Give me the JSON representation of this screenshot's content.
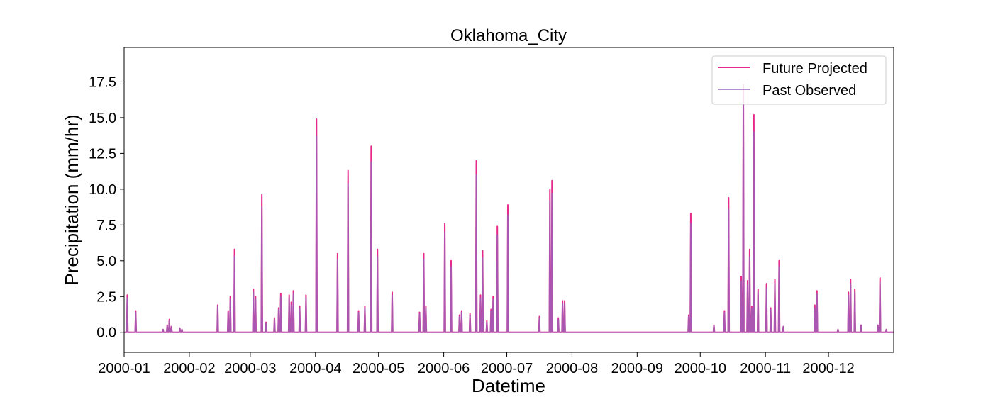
{
  "chart_data": {
    "type": "line",
    "title": "Oklahoma_City",
    "xlabel": "Datetime",
    "ylabel": "Precipitation (mm/hr)",
    "xlim": [
      "2000-01-01",
      "2000-12-31"
    ],
    "ylim": [
      -1.4,
      19.9
    ],
    "x_ticks": [
      "2000-01",
      "2000-02",
      "2000-03",
      "2000-04",
      "2000-05",
      "2000-06",
      "2000-07",
      "2000-08",
      "2000-09",
      "2000-10",
      "2000-11",
      "2000-12"
    ],
    "y_ticks": [
      "0.0",
      "2.5",
      "5.0",
      "7.5",
      "10.0",
      "12.5",
      "15.0",
      "17.5"
    ],
    "y_tick_values": [
      0,
      2.5,
      5,
      7.5,
      10,
      12.5,
      15,
      17.5
    ],
    "grid": false,
    "legend_position": "top-right",
    "series": [
      {
        "name": "Future Projected",
        "color": "#e7298a",
        "points": [
          [
            "2000-01-02",
            2.6
          ],
          [
            "2000-01-06",
            1.5
          ],
          [
            "2000-01-19",
            0.2
          ],
          [
            "2000-01-21",
            0.5
          ],
          [
            "2000-01-22",
            0.9
          ],
          [
            "2000-01-23",
            0.4
          ],
          [
            "2000-01-27",
            0.3
          ],
          [
            "2000-01-28",
            0.2
          ],
          [
            "2000-02-14",
            1.9
          ],
          [
            "2000-02-19",
            1.5
          ],
          [
            "2000-02-20",
            2.5
          ],
          [
            "2000-02-22",
            5.8
          ],
          [
            "2000-03-02",
            3.0
          ],
          [
            "2000-03-03",
            2.5
          ],
          [
            "2000-03-06",
            9.6
          ],
          [
            "2000-03-08",
            0.7
          ],
          [
            "2000-03-12",
            1.0
          ],
          [
            "2000-03-14",
            1.7
          ],
          [
            "2000-03-15",
            2.7
          ],
          [
            "2000-03-19",
            2.6
          ],
          [
            "2000-03-20",
            2.1
          ],
          [
            "2000-03-21",
            2.9
          ],
          [
            "2000-03-24",
            1.8
          ],
          [
            "2000-03-27",
            2.6
          ],
          [
            "2000-04-01",
            14.9
          ],
          [
            "2000-04-11",
            5.5
          ],
          [
            "2000-04-16",
            11.3
          ],
          [
            "2000-04-21",
            1.5
          ],
          [
            "2000-04-24",
            1.8
          ],
          [
            "2000-04-27",
            13.0
          ],
          [
            "2000-04-30",
            5.8
          ],
          [
            "2000-05-07",
            2.8
          ],
          [
            "2000-05-20",
            1.4
          ],
          [
            "2000-05-22",
            5.5
          ],
          [
            "2000-05-23",
            1.8
          ],
          [
            "2000-06-01",
            7.6
          ],
          [
            "2000-06-04",
            5.0
          ],
          [
            "2000-06-08",
            1.2
          ],
          [
            "2000-06-09",
            1.5
          ],
          [
            "2000-06-13",
            1.3
          ],
          [
            "2000-06-16",
            12.0
          ],
          [
            "2000-06-18",
            2.6
          ],
          [
            "2000-06-19",
            5.7
          ],
          [
            "2000-06-21",
            0.8
          ],
          [
            "2000-06-23",
            1.6
          ],
          [
            "2000-06-24",
            2.5
          ],
          [
            "2000-06-26",
            7.4
          ],
          [
            "2000-07-01",
            8.9
          ],
          [
            "2000-07-16",
            1.1
          ],
          [
            "2000-07-21",
            10.0
          ],
          [
            "2000-07-22",
            10.6
          ],
          [
            "2000-07-25",
            1.0
          ],
          [
            "2000-07-27",
            2.2
          ],
          [
            "2000-07-28",
            2.2
          ],
          [
            "2000-09-25",
            1.2
          ],
          [
            "2000-09-26",
            8.3
          ],
          [
            "2000-10-07",
            0.5
          ],
          [
            "2000-10-12",
            1.5
          ],
          [
            "2000-10-14",
            9.4
          ],
          [
            "2000-10-20",
            3.9
          ],
          [
            "2000-10-21",
            17.3
          ],
          [
            "2000-10-23",
            3.6
          ],
          [
            "2000-10-24",
            5.8
          ],
          [
            "2000-10-25",
            1.8
          ],
          [
            "2000-10-26",
            15.2
          ],
          [
            "2000-10-28",
            3.0
          ],
          [
            "2000-11-01",
            3.4
          ],
          [
            "2000-11-03",
            1.7
          ],
          [
            "2000-11-05",
            3.7
          ],
          [
            "2000-11-07",
            5.0
          ],
          [
            "2000-11-09",
            0.4
          ],
          [
            "2000-11-24",
            1.9
          ],
          [
            "2000-11-25",
            2.9
          ],
          [
            "2000-12-05",
            0.2
          ],
          [
            "2000-12-10",
            2.8
          ],
          [
            "2000-12-11",
            3.7
          ],
          [
            "2000-12-13",
            3.0
          ],
          [
            "2000-12-16",
            0.5
          ],
          [
            "2000-12-24",
            0.5
          ],
          [
            "2000-12-25",
            3.8
          ],
          [
            "2000-12-28",
            0.2
          ]
        ]
      },
      {
        "name": "Past Observed",
        "color": "#9467bd",
        "points": [
          [
            "2000-01-02",
            2.4
          ],
          [
            "2000-01-06",
            1.4
          ],
          [
            "2000-01-19",
            0.2
          ],
          [
            "2000-01-21",
            0.5
          ],
          [
            "2000-01-22",
            0.8
          ],
          [
            "2000-01-23",
            0.4
          ],
          [
            "2000-01-27",
            0.3
          ],
          [
            "2000-01-28",
            0.2
          ],
          [
            "2000-02-14",
            1.8
          ],
          [
            "2000-02-19",
            1.4
          ],
          [
            "2000-02-20",
            2.3
          ],
          [
            "2000-02-22",
            5.3
          ],
          [
            "2000-03-02",
            2.8
          ],
          [
            "2000-03-03",
            2.3
          ],
          [
            "2000-03-06",
            8.8
          ],
          [
            "2000-03-08",
            0.6
          ],
          [
            "2000-03-12",
            0.9
          ],
          [
            "2000-03-14",
            1.6
          ],
          [
            "2000-03-15",
            2.5
          ],
          [
            "2000-03-19",
            2.4
          ],
          [
            "2000-03-20",
            1.9
          ],
          [
            "2000-03-21",
            2.7
          ],
          [
            "2000-03-24",
            1.7
          ],
          [
            "2000-03-27",
            2.4
          ],
          [
            "2000-04-01",
            13.7
          ],
          [
            "2000-04-11",
            5.1
          ],
          [
            "2000-04-16",
            10.4
          ],
          [
            "2000-04-21",
            1.4
          ],
          [
            "2000-04-24",
            1.7
          ],
          [
            "2000-04-27",
            11.9
          ],
          [
            "2000-04-30",
            5.3
          ],
          [
            "2000-05-07",
            2.6
          ],
          [
            "2000-05-20",
            1.3
          ],
          [
            "2000-05-22",
            5.1
          ],
          [
            "2000-05-23",
            1.7
          ],
          [
            "2000-06-01",
            7.0
          ],
          [
            "2000-06-04",
            4.6
          ],
          [
            "2000-06-08",
            1.1
          ],
          [
            "2000-06-09",
            1.4
          ],
          [
            "2000-06-13",
            1.2
          ],
          [
            "2000-06-16",
            11.0
          ],
          [
            "2000-06-18",
            2.4
          ],
          [
            "2000-06-19",
            5.2
          ],
          [
            "2000-06-21",
            0.7
          ],
          [
            "2000-06-23",
            1.5
          ],
          [
            "2000-06-24",
            2.3
          ],
          [
            "2000-06-26",
            6.8
          ],
          [
            "2000-07-01",
            8.2
          ],
          [
            "2000-07-16",
            1.0
          ],
          [
            "2000-07-21",
            9.2
          ],
          [
            "2000-07-22",
            9.7
          ],
          [
            "2000-07-25",
            0.9
          ],
          [
            "2000-07-27",
            2.0
          ],
          [
            "2000-07-28",
            2.0
          ],
          [
            "2000-09-25",
            1.1
          ],
          [
            "2000-09-26",
            7.6
          ],
          [
            "2000-10-07",
            0.5
          ],
          [
            "2000-10-12",
            1.4
          ],
          [
            "2000-10-14",
            8.6
          ],
          [
            "2000-10-20",
            3.6
          ],
          [
            "2000-10-21",
            16.0
          ],
          [
            "2000-10-23",
            3.3
          ],
          [
            "2000-10-24",
            5.3
          ],
          [
            "2000-10-25",
            1.7
          ],
          [
            "2000-10-26",
            14.0
          ],
          [
            "2000-10-28",
            2.8
          ],
          [
            "2000-11-01",
            3.1
          ],
          [
            "2000-11-03",
            1.6
          ],
          [
            "2000-11-05",
            3.4
          ],
          [
            "2000-11-07",
            4.6
          ],
          [
            "2000-11-09",
            0.4
          ],
          [
            "2000-11-24",
            1.7
          ],
          [
            "2000-11-25",
            2.7
          ],
          [
            "2000-12-05",
            0.2
          ],
          [
            "2000-12-10",
            2.6
          ],
          [
            "2000-12-11",
            3.4
          ],
          [
            "2000-12-13",
            2.8
          ],
          [
            "2000-12-16",
            0.5
          ],
          [
            "2000-12-24",
            0.5
          ],
          [
            "2000-12-25",
            3.5
          ],
          [
            "2000-12-28",
            0.2
          ]
        ]
      }
    ]
  }
}
